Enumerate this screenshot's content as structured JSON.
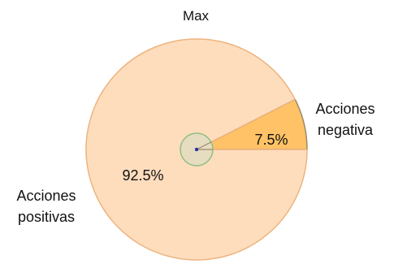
{
  "chart_data": {
    "type": "pie",
    "title": "Max",
    "slices": [
      {
        "label_lines": [
          "Acciones",
          "negativa"
        ],
        "value": 7.5,
        "value_label": "7.5%",
        "color": "#FFC266",
        "stroke": "#9A8A6A"
      },
      {
        "label_lines": [
          "Acciones",
          "positivas"
        ],
        "value": 92.5,
        "value_label": "92.5%",
        "color": "#FEDDBD",
        "stroke": "#EDB47E"
      }
    ],
    "center_marker": {
      "fill": "#E6DCC0",
      "stroke": "#8FC07F",
      "dot_color": "#2B2FA8"
    }
  }
}
